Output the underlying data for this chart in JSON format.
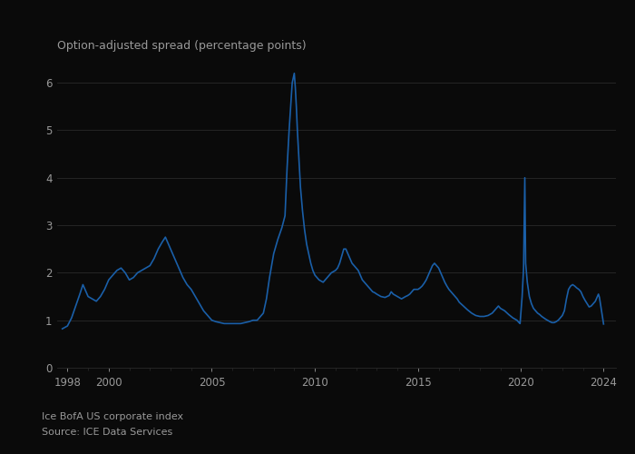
{
  "title": "Option-adjusted spread (percentage points)",
  "footnote1": "Ice BofA US corporate index",
  "footnote2": "Source: ICE Data Services",
  "line_color": "#1a5fa8",
  "background_color": "#0a0a0a",
  "text_color": "#999999",
  "grid_color": "#2a2a2a",
  "ylim": [
    0,
    6.5
  ],
  "yticks": [
    0,
    1,
    2,
    3,
    4,
    5,
    6
  ],
  "xtick_labels": [
    "1998",
    "2000",
    "2005",
    "2010",
    "2015",
    "2020",
    "2024"
  ],
  "xtick_years": [
    1998,
    2000,
    2005,
    2010,
    2015,
    2020,
    2024
  ],
  "data_points": [
    [
      1997.75,
      0.82
    ],
    [
      1998.0,
      0.88
    ],
    [
      1998.2,
      1.05
    ],
    [
      1998.4,
      1.3
    ],
    [
      1998.6,
      1.55
    ],
    [
      1998.75,
      1.75
    ],
    [
      1998.9,
      1.6
    ],
    [
      1999.0,
      1.5
    ],
    [
      1999.2,
      1.45
    ],
    [
      1999.4,
      1.4
    ],
    [
      1999.6,
      1.5
    ],
    [
      1999.8,
      1.65
    ],
    [
      2000.0,
      1.85
    ],
    [
      2000.2,
      1.95
    ],
    [
      2000.4,
      2.05
    ],
    [
      2000.6,
      2.1
    ],
    [
      2000.8,
      2.0
    ],
    [
      2001.0,
      1.85
    ],
    [
      2001.2,
      1.9
    ],
    [
      2001.4,
      2.0
    ],
    [
      2001.6,
      2.05
    ],
    [
      2001.8,
      2.1
    ],
    [
      2002.0,
      2.15
    ],
    [
      2002.2,
      2.3
    ],
    [
      2002.4,
      2.5
    ],
    [
      2002.6,
      2.65
    ],
    [
      2002.75,
      2.75
    ],
    [
      2003.0,
      2.5
    ],
    [
      2003.2,
      2.3
    ],
    [
      2003.4,
      2.1
    ],
    [
      2003.6,
      1.9
    ],
    [
      2003.8,
      1.75
    ],
    [
      2004.0,
      1.65
    ],
    [
      2004.2,
      1.5
    ],
    [
      2004.4,
      1.35
    ],
    [
      2004.6,
      1.2
    ],
    [
      2004.8,
      1.1
    ],
    [
      2005.0,
      1.0
    ],
    [
      2005.2,
      0.97
    ],
    [
      2005.4,
      0.95
    ],
    [
      2005.6,
      0.93
    ],
    [
      2005.8,
      0.93
    ],
    [
      2006.0,
      0.93
    ],
    [
      2006.2,
      0.93
    ],
    [
      2006.4,
      0.93
    ],
    [
      2006.6,
      0.95
    ],
    [
      2006.8,
      0.97
    ],
    [
      2007.0,
      1.0
    ],
    [
      2007.2,
      1.0
    ],
    [
      2007.3,
      1.05
    ],
    [
      2007.5,
      1.15
    ],
    [
      2007.65,
      1.45
    ],
    [
      2007.8,
      1.9
    ],
    [
      2008.0,
      2.4
    ],
    [
      2008.2,
      2.7
    ],
    [
      2008.4,
      2.95
    ],
    [
      2008.55,
      3.2
    ],
    [
      2008.65,
      4.2
    ],
    [
      2008.75,
      5.0
    ],
    [
      2008.83,
      5.55
    ],
    [
      2008.9,
      6.0
    ],
    [
      2009.0,
      6.2
    ],
    [
      2009.05,
      5.9
    ],
    [
      2009.1,
      5.5
    ],
    [
      2009.15,
      5.0
    ],
    [
      2009.2,
      4.6
    ],
    [
      2009.3,
      3.8
    ],
    [
      2009.4,
      3.3
    ],
    [
      2009.5,
      2.9
    ],
    [
      2009.6,
      2.6
    ],
    [
      2009.7,
      2.4
    ],
    [
      2009.8,
      2.2
    ],
    [
      2009.9,
      2.05
    ],
    [
      2010.0,
      1.95
    ],
    [
      2010.2,
      1.85
    ],
    [
      2010.4,
      1.8
    ],
    [
      2010.5,
      1.85
    ],
    [
      2010.6,
      1.9
    ],
    [
      2010.7,
      1.95
    ],
    [
      2010.8,
      2.0
    ],
    [
      2011.0,
      2.05
    ],
    [
      2011.1,
      2.1
    ],
    [
      2011.2,
      2.2
    ],
    [
      2011.3,
      2.35
    ],
    [
      2011.4,
      2.5
    ],
    [
      2011.5,
      2.5
    ],
    [
      2011.6,
      2.4
    ],
    [
      2011.7,
      2.3
    ],
    [
      2011.8,
      2.2
    ],
    [
      2011.9,
      2.15
    ],
    [
      2012.0,
      2.1
    ],
    [
      2012.1,
      2.05
    ],
    [
      2012.2,
      1.95
    ],
    [
      2012.3,
      1.85
    ],
    [
      2012.4,
      1.8
    ],
    [
      2012.5,
      1.75
    ],
    [
      2012.6,
      1.7
    ],
    [
      2012.7,
      1.65
    ],
    [
      2012.8,
      1.6
    ],
    [
      2012.9,
      1.58
    ],
    [
      2013.0,
      1.55
    ],
    [
      2013.2,
      1.5
    ],
    [
      2013.4,
      1.48
    ],
    [
      2013.5,
      1.5
    ],
    [
      2013.6,
      1.52
    ],
    [
      2013.7,
      1.6
    ],
    [
      2013.8,
      1.55
    ],
    [
      2014.0,
      1.5
    ],
    [
      2014.2,
      1.45
    ],
    [
      2014.4,
      1.5
    ],
    [
      2014.5,
      1.52
    ],
    [
      2014.6,
      1.55
    ],
    [
      2014.7,
      1.6
    ],
    [
      2014.8,
      1.65
    ],
    [
      2014.9,
      1.65
    ],
    [
      2015.0,
      1.65
    ],
    [
      2015.1,
      1.68
    ],
    [
      2015.2,
      1.72
    ],
    [
      2015.3,
      1.78
    ],
    [
      2015.4,
      1.85
    ],
    [
      2015.5,
      1.95
    ],
    [
      2015.6,
      2.05
    ],
    [
      2015.7,
      2.15
    ],
    [
      2015.8,
      2.2
    ],
    [
      2015.9,
      2.15
    ],
    [
      2016.0,
      2.1
    ],
    [
      2016.1,
      2.0
    ],
    [
      2016.2,
      1.9
    ],
    [
      2016.3,
      1.8
    ],
    [
      2016.4,
      1.72
    ],
    [
      2016.5,
      1.65
    ],
    [
      2016.6,
      1.6
    ],
    [
      2016.7,
      1.55
    ],
    [
      2016.8,
      1.5
    ],
    [
      2016.9,
      1.45
    ],
    [
      2017.0,
      1.38
    ],
    [
      2017.2,
      1.3
    ],
    [
      2017.4,
      1.22
    ],
    [
      2017.6,
      1.15
    ],
    [
      2017.8,
      1.1
    ],
    [
      2018.0,
      1.08
    ],
    [
      2018.2,
      1.08
    ],
    [
      2018.4,
      1.1
    ],
    [
      2018.6,
      1.15
    ],
    [
      2018.8,
      1.25
    ],
    [
      2018.9,
      1.3
    ],
    [
      2019.0,
      1.25
    ],
    [
      2019.2,
      1.2
    ],
    [
      2019.4,
      1.12
    ],
    [
      2019.6,
      1.05
    ],
    [
      2019.8,
      1.0
    ],
    [
      2019.9,
      0.95
    ],
    [
      2019.95,
      0.93
    ],
    [
      2020.05,
      1.5
    ],
    [
      2020.12,
      2.1
    ],
    [
      2020.18,
      4.0
    ],
    [
      2020.22,
      2.2
    ],
    [
      2020.3,
      1.8
    ],
    [
      2020.4,
      1.5
    ],
    [
      2020.5,
      1.35
    ],
    [
      2020.6,
      1.25
    ],
    [
      2020.7,
      1.2
    ],
    [
      2020.8,
      1.15
    ],
    [
      2020.9,
      1.12
    ],
    [
      2021.0,
      1.08
    ],
    [
      2021.2,
      1.02
    ],
    [
      2021.4,
      0.97
    ],
    [
      2021.5,
      0.95
    ],
    [
      2021.6,
      0.95
    ],
    [
      2021.7,
      0.97
    ],
    [
      2021.8,
      1.0
    ],
    [
      2021.9,
      1.05
    ],
    [
      2022.0,
      1.1
    ],
    [
      2022.1,
      1.2
    ],
    [
      2022.2,
      1.45
    ],
    [
      2022.3,
      1.65
    ],
    [
      2022.4,
      1.72
    ],
    [
      2022.5,
      1.75
    ],
    [
      2022.6,
      1.72
    ],
    [
      2022.7,
      1.68
    ],
    [
      2022.8,
      1.65
    ],
    [
      2022.9,
      1.6
    ],
    [
      2023.0,
      1.5
    ],
    [
      2023.1,
      1.42
    ],
    [
      2023.2,
      1.35
    ],
    [
      2023.3,
      1.28
    ],
    [
      2023.4,
      1.3
    ],
    [
      2023.5,
      1.35
    ],
    [
      2023.6,
      1.4
    ],
    [
      2023.7,
      1.5
    ],
    [
      2023.75,
      1.55
    ],
    [
      2023.8,
      1.48
    ],
    [
      2023.9,
      1.2
    ],
    [
      2023.95,
      1.05
    ],
    [
      2024.0,
      0.92
    ]
  ]
}
